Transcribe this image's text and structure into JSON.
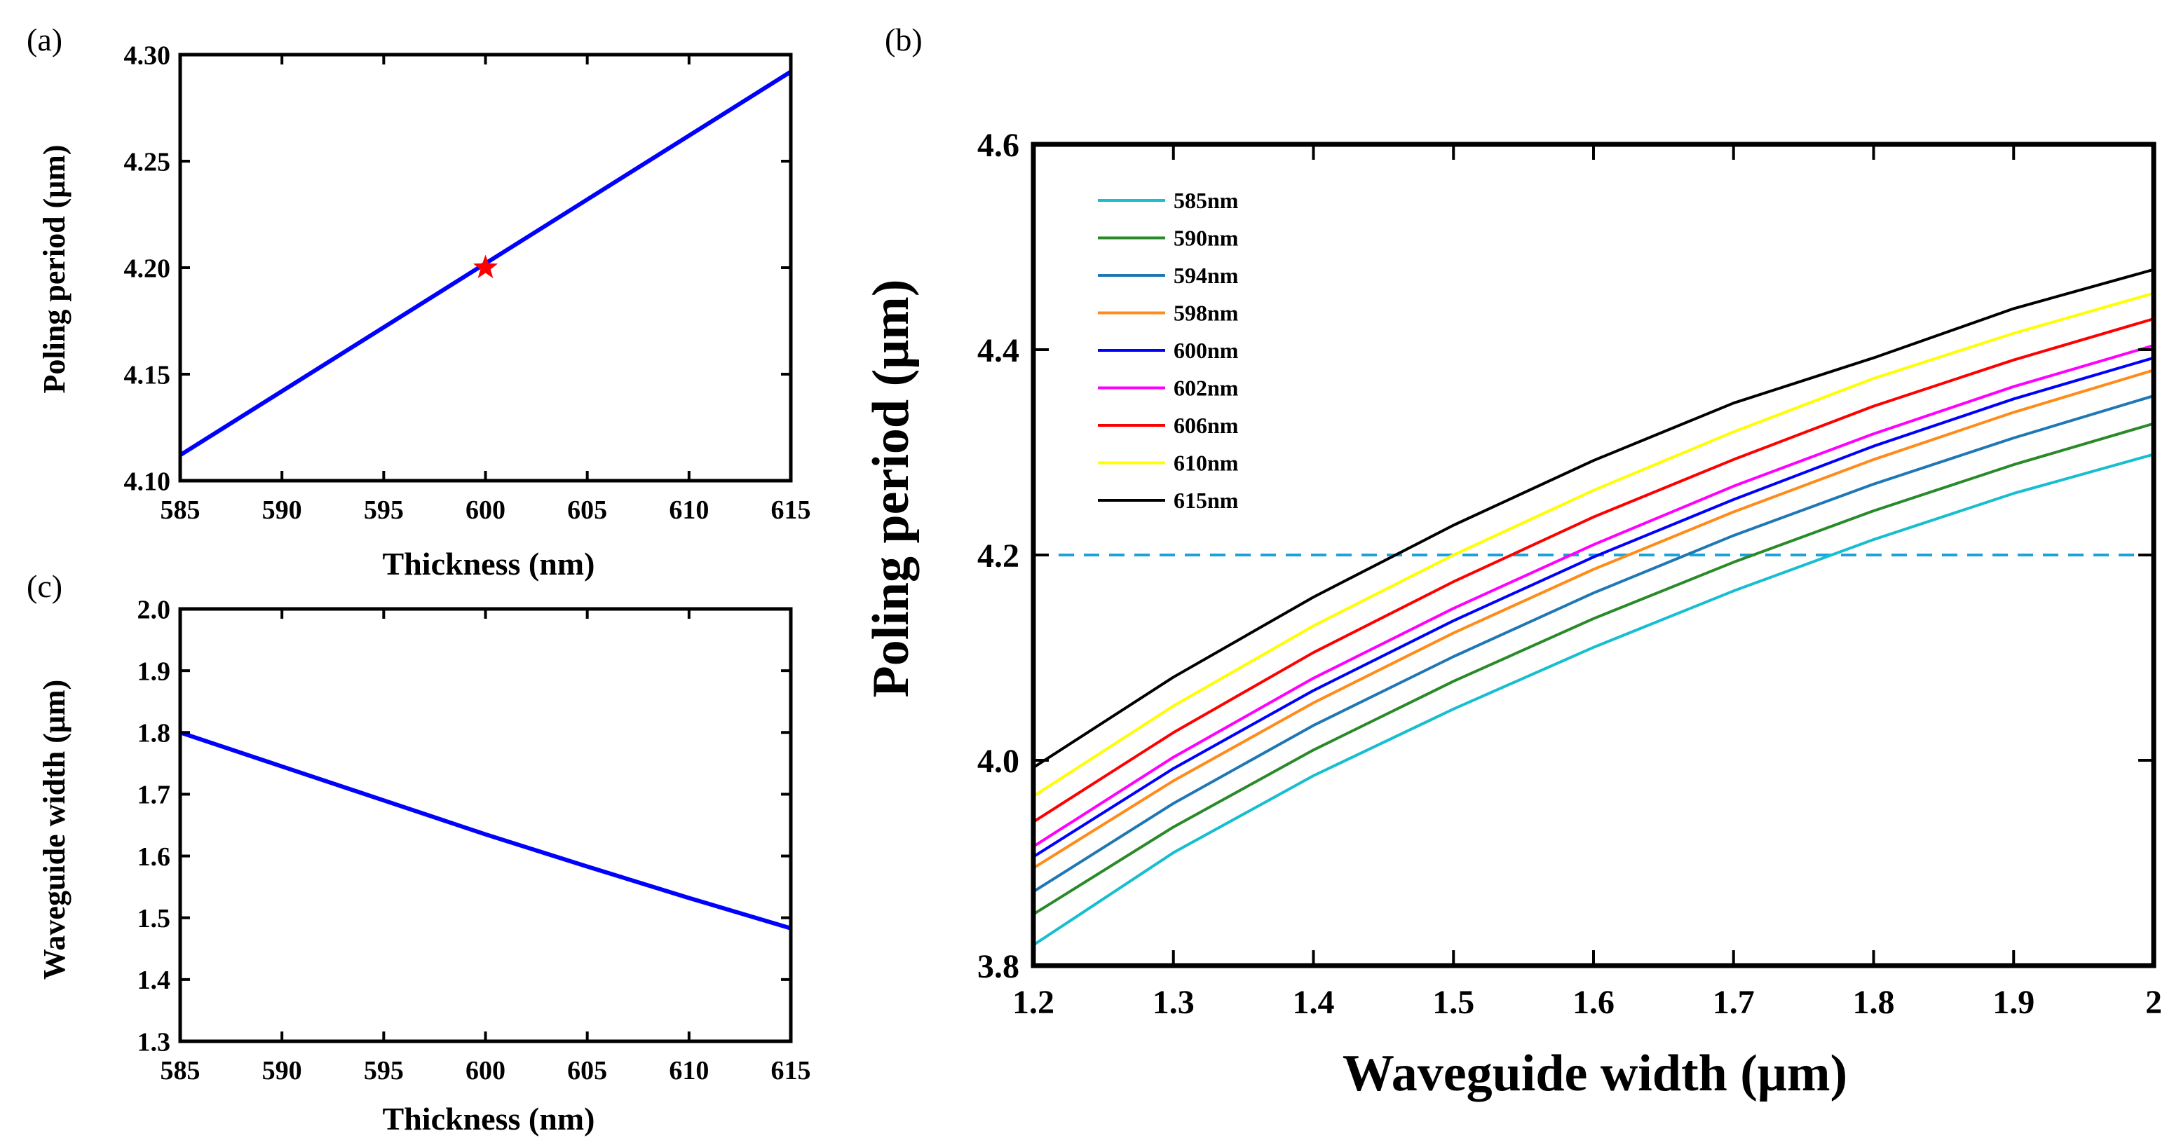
{
  "chart_data": [
    {
      "id": "a",
      "panel_label": "(a)",
      "type": "line",
      "xlabel": "Thickness (nm)",
      "ylabel": "Poling period (μm)",
      "xlim": [
        585,
        615
      ],
      "ylim": [
        4.1,
        4.3
      ],
      "xticks": [
        585,
        590,
        595,
        600,
        605,
        610,
        615
      ],
      "yticks": [
        4.1,
        4.15,
        4.2,
        4.25,
        4.3
      ],
      "ytick_labels": [
        "4.10",
        "4.15",
        "4.20",
        "4.25",
        "4.30"
      ],
      "grid": false,
      "series": [
        {
          "name": "poling period",
          "color": "#0000ff",
          "x": [
            585,
            615
          ],
          "y": [
            4.112,
            4.292
          ]
        }
      ],
      "marker": {
        "symbol": "star",
        "color": "#ff0000",
        "x": 600,
        "y": 4.2
      }
    },
    {
      "id": "c",
      "panel_label": "(c)",
      "type": "line",
      "xlabel": "Thickness (nm)",
      "ylabel": "Waveguide width (μm)",
      "xlim": [
        585,
        615
      ],
      "ylim": [
        1.3,
        2.0
      ],
      "xticks": [
        585,
        590,
        595,
        600,
        605,
        610,
        615
      ],
      "yticks": [
        1.3,
        1.4,
        1.5,
        1.6,
        1.7,
        1.8,
        1.9,
        2.0
      ],
      "ytick_labels": [
        "1.3",
        "1.4",
        "1.5",
        "1.6",
        "1.7",
        "1.8",
        "1.9",
        "2.0"
      ],
      "grid": false,
      "series": [
        {
          "name": "waveguide width",
          "color": "#0000ff",
          "x": [
            585,
            590,
            595,
            600,
            605,
            610,
            615
          ],
          "y": [
            1.8,
            1.745,
            1.69,
            1.635,
            1.583,
            1.532,
            1.483
          ]
        }
      ]
    },
    {
      "id": "b",
      "panel_label": "(b)",
      "type": "line",
      "xlabel": "Waveguide width (μm)",
      "ylabel": "Poling period (μm)",
      "xlim": [
        1.2,
        2.0
      ],
      "ylim": [
        3.8,
        4.6
      ],
      "xticks": [
        1.2,
        1.3,
        1.4,
        1.5,
        1.6,
        1.7,
        1.8,
        1.9,
        2.0
      ],
      "xtick_labels": [
        "1.2",
        "1.3",
        "1.4",
        "1.5",
        "1.6",
        "1.7",
        "1.8",
        "1.9",
        "2"
      ],
      "yticks": [
        3.8,
        4.0,
        4.2,
        4.4,
        4.6
      ],
      "ytick_labels": [
        "3.8",
        "4.0",
        "4.2",
        "4.4",
        "4.6"
      ],
      "grid": false,
      "legend": "top-left",
      "x": [
        1.2,
        1.3,
        1.4,
        1.5,
        1.6,
        1.7,
        1.8,
        1.9,
        2.0
      ],
      "series": [
        {
          "name": "585nm",
          "color": "#17becf",
          "values": [
            3.82,
            3.91,
            3.985,
            4.05,
            4.11,
            4.165,
            4.215,
            4.26,
            4.298
          ]
        },
        {
          "name": "590nm",
          "color": "#2a8a2a",
          "values": [
            3.85,
            3.935,
            4.01,
            4.077,
            4.138,
            4.193,
            4.243,
            4.288,
            4.328
          ]
        },
        {
          "name": "594nm",
          "color": "#1f77b4",
          "values": [
            3.872,
            3.958,
            4.034,
            4.101,
            4.163,
            4.219,
            4.269,
            4.314,
            4.355
          ]
        },
        {
          "name": "598nm",
          "color": "#ff8c1a",
          "values": [
            3.895,
            3.98,
            4.056,
            4.124,
            4.186,
            4.242,
            4.293,
            4.339,
            4.38
          ]
        },
        {
          "name": "600nm",
          "color": "#0000ff",
          "values": [
            3.906,
            3.992,
            4.068,
            4.136,
            4.198,
            4.254,
            4.306,
            4.352,
            4.392
          ]
        },
        {
          "name": "602nm",
          "color": "#ff00ff",
          "values": [
            3.916,
            4.003,
            4.08,
            4.148,
            4.21,
            4.267,
            4.318,
            4.364,
            4.404
          ]
        },
        {
          "name": "606nm",
          "color": "#ff0000",
          "values": [
            3.94,
            4.027,
            4.105,
            4.174,
            4.237,
            4.293,
            4.345,
            4.39,
            4.43
          ]
        },
        {
          "name": "610nm",
          "color": "#ffff00",
          "values": [
            3.965,
            4.053,
            4.131,
            4.2,
            4.263,
            4.32,
            4.372,
            4.416,
            4.455
          ]
        },
        {
          "name": "615nm",
          "color": "#000000",
          "values": [
            3.993,
            4.081,
            4.159,
            4.229,
            4.292,
            4.348,
            4.392,
            4.44,
            4.478
          ]
        }
      ],
      "reference_line": {
        "y": 4.2,
        "color": "#1aa3d9",
        "style": "dashed"
      }
    }
  ]
}
